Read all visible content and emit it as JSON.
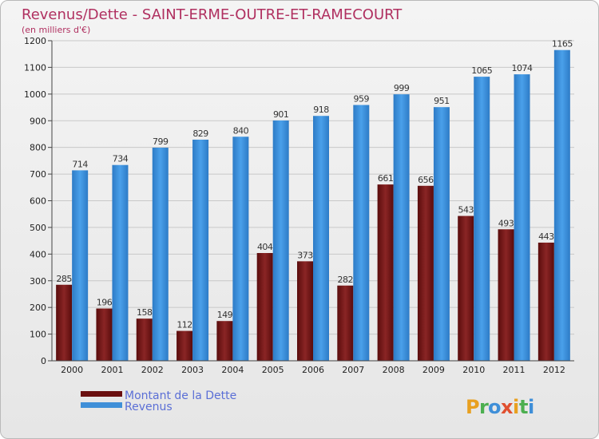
{
  "chart_data": {
    "type": "bar",
    "title": "Revenus/Dette - SAINT-ERME-OUTRE-ET-RAMECOURT",
    "subtitle": "(en milliers d'€)",
    "categories": [
      "2000",
      "2001",
      "2002",
      "2003",
      "2004",
      "2005",
      "2006",
      "2007",
      "2008",
      "2009",
      "2010",
      "2011",
      "2012"
    ],
    "series": [
      {
        "name": "Montant de la Dette",
        "color": "#7a1a1a",
        "values": [
          285,
          196,
          158,
          112,
          149,
          404,
          373,
          282,
          661,
          656,
          543,
          493,
          443
        ]
      },
      {
        "name": "Revenus",
        "color": "#3f8fd8",
        "values": [
          714,
          734,
          799,
          829,
          840,
          901,
          918,
          959,
          999,
          951,
          1065,
          1074,
          1165
        ]
      }
    ],
    "ylim": [
      0,
      1200
    ],
    "yticks": [
      0,
      100,
      200,
      300,
      400,
      500,
      600,
      700,
      800,
      900,
      1000,
      1100,
      1200
    ],
    "grid": true,
    "legend_position": "bottom-left"
  },
  "brand": {
    "letters": [
      "P",
      "r",
      "o",
      "x",
      "i",
      "t",
      "i"
    ],
    "colors": [
      "#e8a020",
      "#4caf50",
      "#3f8fd8",
      "#e05030",
      "#e8a020",
      "#4caf50",
      "#3f8fd8"
    ]
  }
}
